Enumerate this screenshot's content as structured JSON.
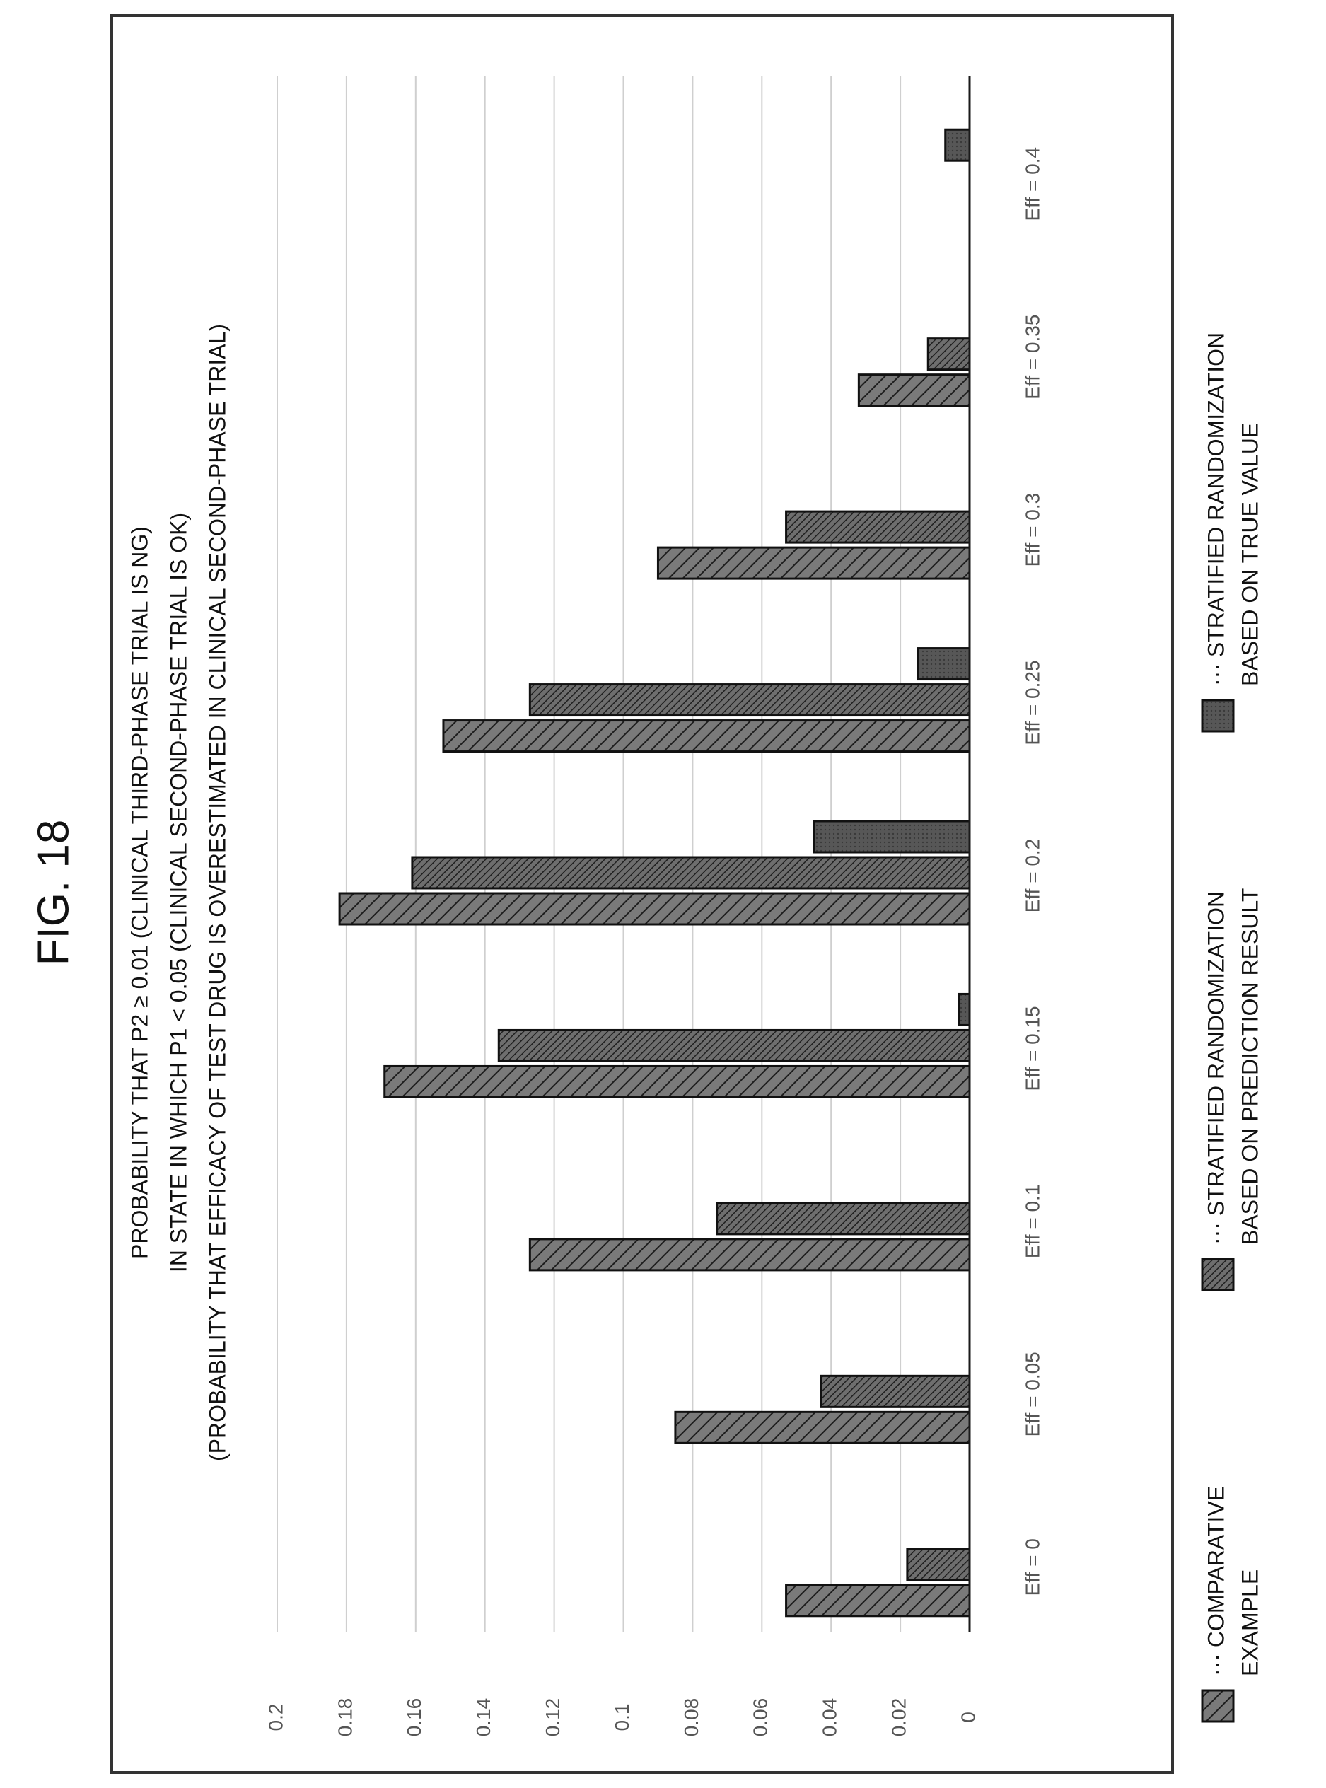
{
  "figure": {
    "label": "FIG. 18"
  },
  "chart_data": {
    "type": "bar",
    "orientation": "horizontal",
    "title": [
      "PROBABILITY THAT P2 ≥ 0.01 (CLINICAL THIRD-PHASE TRIAL IS NG)",
      "IN STATE IN WHICH P1 < 0.05 (CLINICAL SECOND-PHASE TRIAL IS OK)",
      "(PROBABILITY THAT EFFICACY OF TEST DRUG IS OVERESTIMATED IN CLINICAL SECOND-PHASE TRIAL)"
    ],
    "categories": [
      "Eff = 0",
      "Eff = 0.05",
      "Eff = 0.1",
      "Eff = 0.15",
      "Eff = 0.2",
      "Eff = 0.25",
      "Eff = 0.3",
      "Eff = 0.35",
      "Eff = 0.4"
    ],
    "series": [
      {
        "name": "COMPARATIVE EXAMPLE",
        "legend_lines": [
          "··· COMPARATIVE",
          "EXAMPLE"
        ],
        "pattern": "sparse-hatch",
        "values": [
          0.053,
          0.085,
          0.127,
          0.169,
          0.182,
          0.152,
          0.09,
          0.032,
          0
        ]
      },
      {
        "name": "STRATIFIED RANDOMIZATION BASED ON PREDICTION RESULT",
        "legend_lines": [
          "··· STRATIFIED RANDOMIZATION",
          "BASED ON PREDICTION RESULT"
        ],
        "pattern": "dense-hatch",
        "values": [
          0.018,
          0.043,
          0.073,
          0.136,
          0.161,
          0.127,
          0.053,
          0.012,
          0
        ]
      },
      {
        "name": "STRATIFIED RANDOMIZATION BASED ON TRUE VALUE",
        "legend_lines": [
          "··· STRATIFIED RANDOMIZATION",
          "BASED ON TRUE VALUE"
        ],
        "pattern": "solid-dark",
        "values": [
          0,
          0,
          0,
          0.003,
          0.045,
          0.015,
          0,
          0,
          0.007
        ]
      }
    ],
    "value_axis": {
      "min": 0,
      "max": 0.2,
      "step": 0.02,
      "tick_labels": [
        "0",
        "0.02",
        "0.04",
        "0.06",
        "0.08",
        "0.1",
        "0.12",
        "0.14",
        "0.16",
        "0.18",
        "0.2"
      ]
    },
    "grid": true,
    "legend_position": "bottom",
    "colors": {
      "bar_fill": "#777777",
      "bar_dark": "#555555",
      "bar_stroke": "#111111",
      "hatch": "#222222",
      "grid": "#cfcfcf",
      "frame": "#333333"
    }
  }
}
